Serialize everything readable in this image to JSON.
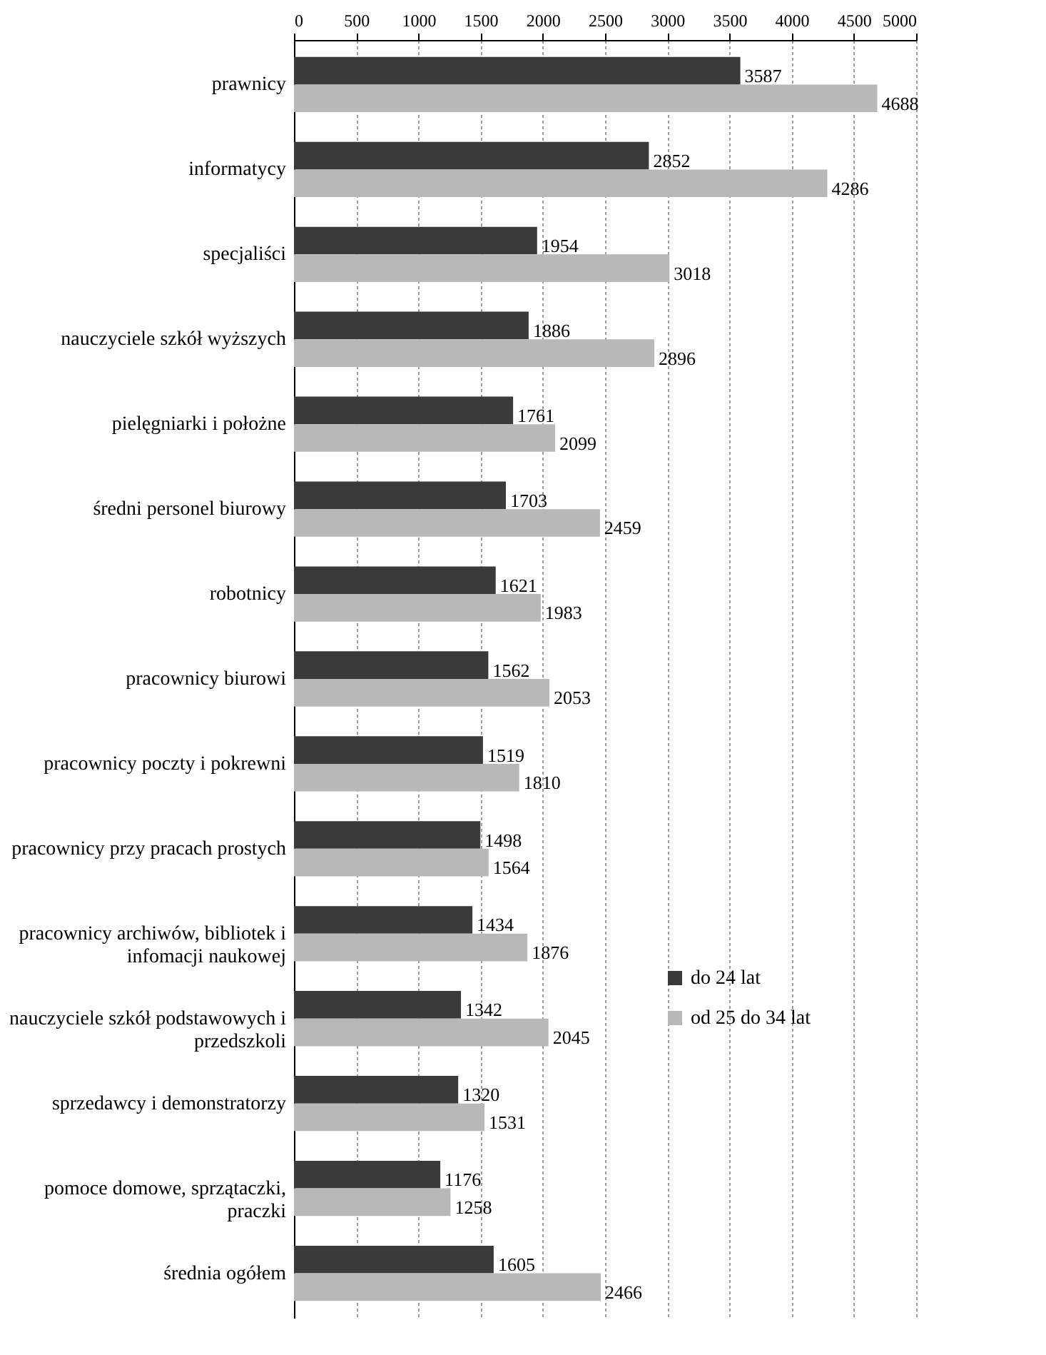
{
  "chart_data": {
    "type": "bar",
    "orientation": "horizontal",
    "categories": [
      "prawnicy",
      "informatycy",
      "specjaliści",
      "nauczyciele szkół wyższych",
      "pielęgniarki i położne",
      "średni personel biurowy",
      "robotnicy",
      "pracownicy biurowi",
      "pracownicy poczty i pokrewni",
      "pracownicy przy pracach prostych",
      "pracownicy archiwów, bibliotek i infomacji naukowej",
      "nauczyciele szkół podstawowych i przedszkoli",
      "sprzedawcy i demonstratorzy",
      "pomoce domowe, sprzątaczki, praczki",
      "średnia ogółem"
    ],
    "series": [
      {
        "name": "do 24 lat",
        "color": "#3a3a3a",
        "values": [
          3587,
          2852,
          1954,
          1886,
          1761,
          1703,
          1621,
          1562,
          1519,
          1498,
          1434,
          1342,
          1320,
          1176,
          1605
        ]
      },
      {
        "name": "od 25 do 34 lat",
        "color": "#b8b8b8",
        "values": [
          4688,
          4286,
          3018,
          2896,
          2099,
          2459,
          1983,
          2053,
          1810,
          1564,
          1876,
          2045,
          1531,
          1258,
          2466
        ]
      }
    ],
    "xlim": [
      0,
      5000
    ],
    "xticks": [
      0,
      500,
      1000,
      1500,
      2000,
      2500,
      3000,
      3500,
      4000,
      4500,
      5000
    ],
    "grid": "x",
    "data_labels": true,
    "legend": "right"
  }
}
